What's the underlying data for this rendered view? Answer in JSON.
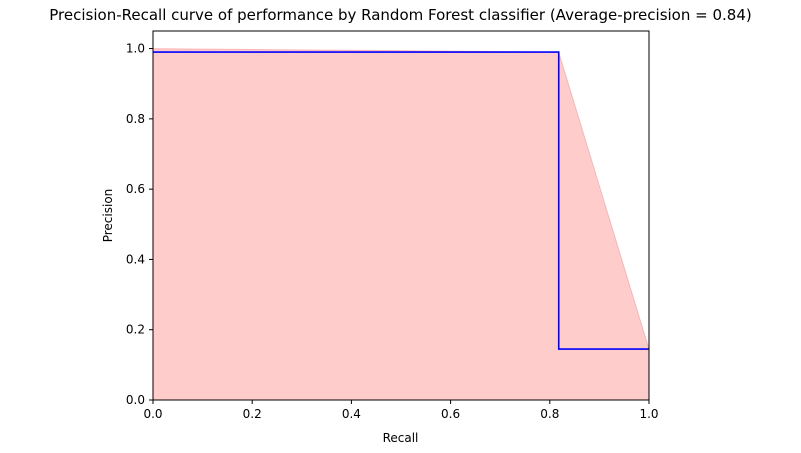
{
  "chart_data": {
    "type": "line",
    "title": "Precision-Recall curve of performance by Random Forest classifier (Average-precision = 0.84)",
    "xlabel": "Recall",
    "ylabel": "Precision",
    "xlim": [
      0.0,
      1.0
    ],
    "ylim": [
      0.0,
      1.05
    ],
    "xticks": [
      "0.0",
      "0.2",
      "0.4",
      "0.6",
      "0.8",
      "1.0"
    ],
    "yticks": [
      "0.0",
      "0.2",
      "0.4",
      "0.6",
      "0.8",
      "1.0"
    ],
    "grid": false,
    "legend": "none",
    "series": [
      {
        "kind": "step",
        "color": "#0000ff",
        "x": [
          0.0,
          0.818,
          0.818,
          1.0
        ],
        "y": [
          0.99,
          0.99,
          0.145,
          0.145
        ]
      },
      {
        "kind": "fill",
        "color": "#ff0000",
        "alpha": 0.2,
        "x": [
          0.0,
          0.818,
          1.0
        ],
        "y": [
          1.0,
          0.99,
          0.145
        ]
      }
    ]
  },
  "colors": {
    "curve": "#0000ff",
    "fill": "#ff0000",
    "axes": "#000000",
    "background": "#ffffff"
  }
}
